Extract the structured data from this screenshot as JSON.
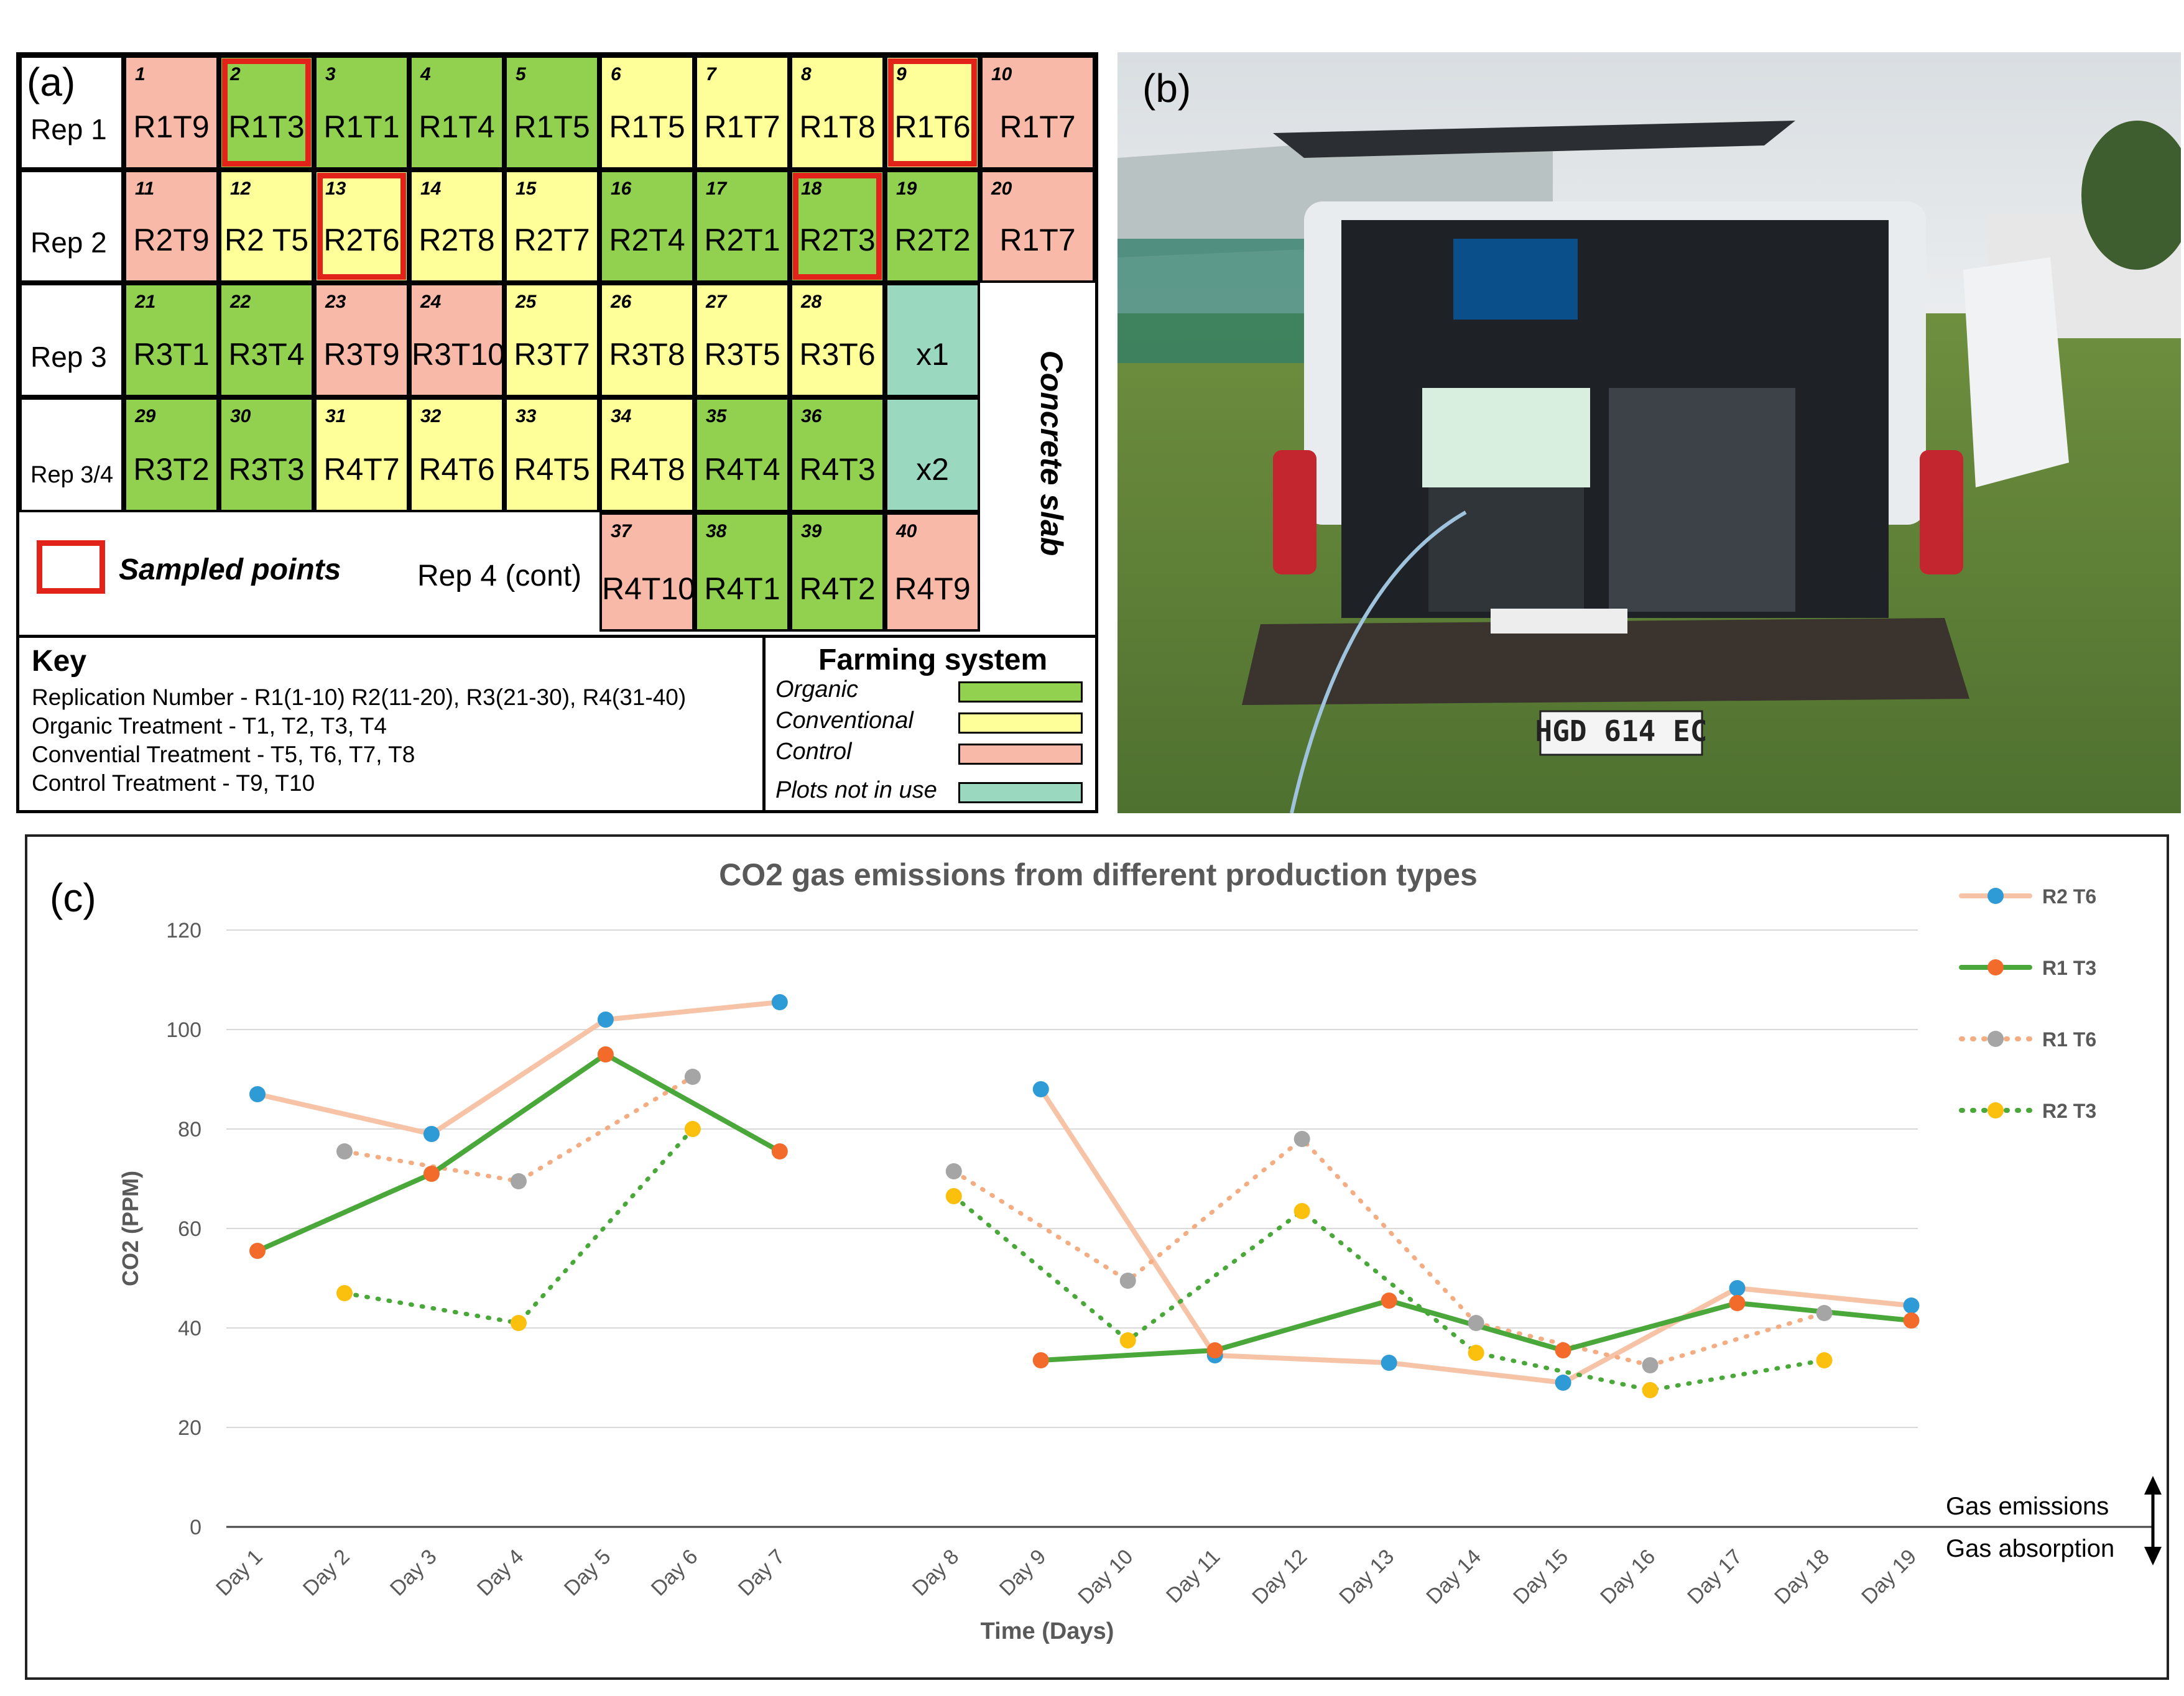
{
  "panel_a": {
    "letter": "(a)",
    "rows": [
      {
        "label": "Rep 1",
        "cells": [
          {
            "num": "1",
            "label": "R1T9",
            "type": "control"
          },
          {
            "num": "2",
            "label": "R1T3",
            "type": "organic",
            "sampled": true
          },
          {
            "num": "3",
            "label": "R1T1",
            "type": "organic"
          },
          {
            "num": "4",
            "label": "R1T4",
            "type": "organic"
          },
          {
            "num": "5",
            "label": "R1T5",
            "type": "organic"
          },
          {
            "num": "6",
            "label": "R1T5",
            "type": "conventional"
          },
          {
            "num": "7",
            "label": "R1T7",
            "type": "conventional"
          },
          {
            "num": "8",
            "label": "R1T8",
            "type": "conventional"
          },
          {
            "num": "9",
            "label": "R1T6",
            "type": "conventional",
            "sampled": true
          },
          {
            "num": "10",
            "label": "R1T7",
            "type": "control"
          }
        ]
      },
      {
        "label": "Rep 2",
        "cells": [
          {
            "num": "11",
            "label": "R2T9",
            "type": "control"
          },
          {
            "num": "12",
            "label": "R2 T5",
            "type": "conventional"
          },
          {
            "num": "13",
            "label": "R2T6",
            "type": "conventional",
            "sampled": true
          },
          {
            "num": "14",
            "label": "R2T8",
            "type": "conventional"
          },
          {
            "num": "15",
            "label": "R2T7",
            "type": "conventional"
          },
          {
            "num": "16",
            "label": "R2T4",
            "type": "organic"
          },
          {
            "num": "17",
            "label": "R2T1",
            "type": "organic"
          },
          {
            "num": "18",
            "label": "R2T3",
            "type": "organic",
            "sampled": true
          },
          {
            "num": "19",
            "label": "R2T2",
            "type": "organic"
          },
          {
            "num": "20",
            "label": "R1T7",
            "type": "control"
          }
        ]
      },
      {
        "label": "Rep 3",
        "cells": [
          {
            "num": "21",
            "label": "R3T1",
            "type": "organic"
          },
          {
            "num": "22",
            "label": "R3T4",
            "type": "organic"
          },
          {
            "num": "23",
            "label": "R3T9",
            "type": "control"
          },
          {
            "num": "24",
            "label": "R3T10",
            "type": "control"
          },
          {
            "num": "25",
            "label": "R3T7",
            "type": "conventional"
          },
          {
            "num": "26",
            "label": "R3T8",
            "type": "conventional"
          },
          {
            "num": "27",
            "label": "R3T5",
            "type": "conventional"
          },
          {
            "num": "28",
            "label": "R3T6",
            "type": "conventional"
          },
          {
            "num": "",
            "label": "x1",
            "type": "unused"
          }
        ]
      },
      {
        "label": "Rep 3/4",
        "cells": [
          {
            "num": "29",
            "label": "R3T2",
            "type": "organic"
          },
          {
            "num": "30",
            "label": "R3T3",
            "type": "organic"
          },
          {
            "num": "31",
            "label": "R4T7",
            "type": "conventional"
          },
          {
            "num": "32",
            "label": "R4T6",
            "type": "conventional"
          },
          {
            "num": "33",
            "label": "R4T5",
            "type": "conventional"
          },
          {
            "num": "34",
            "label": "R4T8",
            "type": "conventional"
          },
          {
            "num": "35",
            "label": "R4T4",
            "type": "organic"
          },
          {
            "num": "36",
            "label": "R4T3",
            "type": "organic"
          },
          {
            "num": "",
            "label": "x2",
            "type": "unused"
          }
        ]
      },
      {
        "label": "",
        "cells": [
          {
            "num": "37",
            "label": "R4T10",
            "type": "control"
          },
          {
            "num": "38",
            "label": "R4T1",
            "type": "organic"
          },
          {
            "num": "39",
            "label": "R4T2",
            "type": "organic"
          },
          {
            "num": "40",
            "label": "R4T9",
            "type": "control"
          }
        ]
      }
    ],
    "concrete_slab": "Concrete slab",
    "sampled_points": "Sampled points",
    "rep4_cont": "Rep 4 (cont)",
    "key": {
      "title": "Key",
      "lines": [
        "Replication Number - R1(1-10) R2(11-20), R3(21-30), R4(31-40)",
        "Organic Treatment - T1, T2, T3, T4",
        "Convential Treatment - T5, T6, T7, T8",
        "Control Treatment - T9, T10"
      ]
    },
    "farming_system": {
      "title": "Farming system",
      "items": [
        {
          "label": "Organic",
          "color": "#92d050"
        },
        {
          "label": "Conventional",
          "color": "#ffff99"
        },
        {
          "label": "Control",
          "color": "#f8b9a9"
        },
        {
          "label": "Plots not in use",
          "color": "#9ad9bf"
        }
      ]
    },
    "colors": {
      "organic": "#92d050",
      "conventional": "#ffff99",
      "control": "#f8b9a9",
      "unused": "#9ad9bf",
      "sampled": "#e2231a"
    }
  },
  "panel_b": {
    "letter": "(b)",
    "plate": "HGD 614 EC"
  },
  "panel_c": {
    "letter": "(c)",
    "arrow_up_label": "Gas emissions",
    "arrow_down_label": "Gas absorption"
  },
  "chart_data": {
    "type": "line",
    "title": "CO2 gas emissions from different production types",
    "xlabel": "Time (Days)",
    "ylabel": "CO2 (PPM)",
    "ylim": [
      0,
      120
    ],
    "yticks": [
      0,
      20,
      40,
      60,
      80,
      100,
      120
    ],
    "grid": true,
    "legend": "right",
    "categories": [
      "Day 1",
      "Day 2",
      "Day 3",
      "Day 4",
      "Day 5",
      "Day 6",
      "Day 7",
      "Day 8",
      "Day 9",
      "Day 10",
      "Day 11",
      "Day 12",
      "Day 13",
      "Day 14",
      "Day 15",
      "Day 16",
      "Day 17",
      "Day 18",
      "Day 19"
    ],
    "gap_after_index": 6,
    "series": [
      {
        "name": "R2 T6",
        "line_color": "#f7c3a6",
        "marker_color": "#2e9bd6",
        "dash": "solid",
        "values": [
          87,
          null,
          79,
          null,
          102,
          null,
          105.5,
          null,
          88,
          null,
          34.5,
          null,
          33,
          null,
          29,
          null,
          48,
          null,
          44.5
        ]
      },
      {
        "name": "R1 T3",
        "line_color": "#4aa83a",
        "marker_color": "#f26b2a",
        "dash": "solid",
        "values": [
          55.5,
          null,
          71,
          null,
          95,
          null,
          75.5,
          null,
          33.5,
          null,
          35.5,
          null,
          45.5,
          null,
          35.5,
          null,
          45,
          null,
          41.5
        ]
      },
      {
        "name": "R1 T6",
        "line_color": "#f4ad82",
        "marker_color": "#a5a5a5",
        "dash": "dotted",
        "values": [
          null,
          75.5,
          null,
          69.5,
          null,
          90.5,
          null,
          71.5,
          null,
          49.5,
          null,
          78,
          null,
          41,
          null,
          32.5,
          null,
          43,
          null
        ]
      },
      {
        "name": "R2 T3",
        "line_color": "#4aa83a",
        "marker_color": "#fbbf0e",
        "dash": "dotted",
        "values": [
          null,
          47,
          null,
          41,
          null,
          80,
          null,
          66.5,
          null,
          37.5,
          null,
          63.5,
          null,
          35,
          null,
          27.5,
          null,
          33.5,
          null
        ]
      }
    ]
  }
}
